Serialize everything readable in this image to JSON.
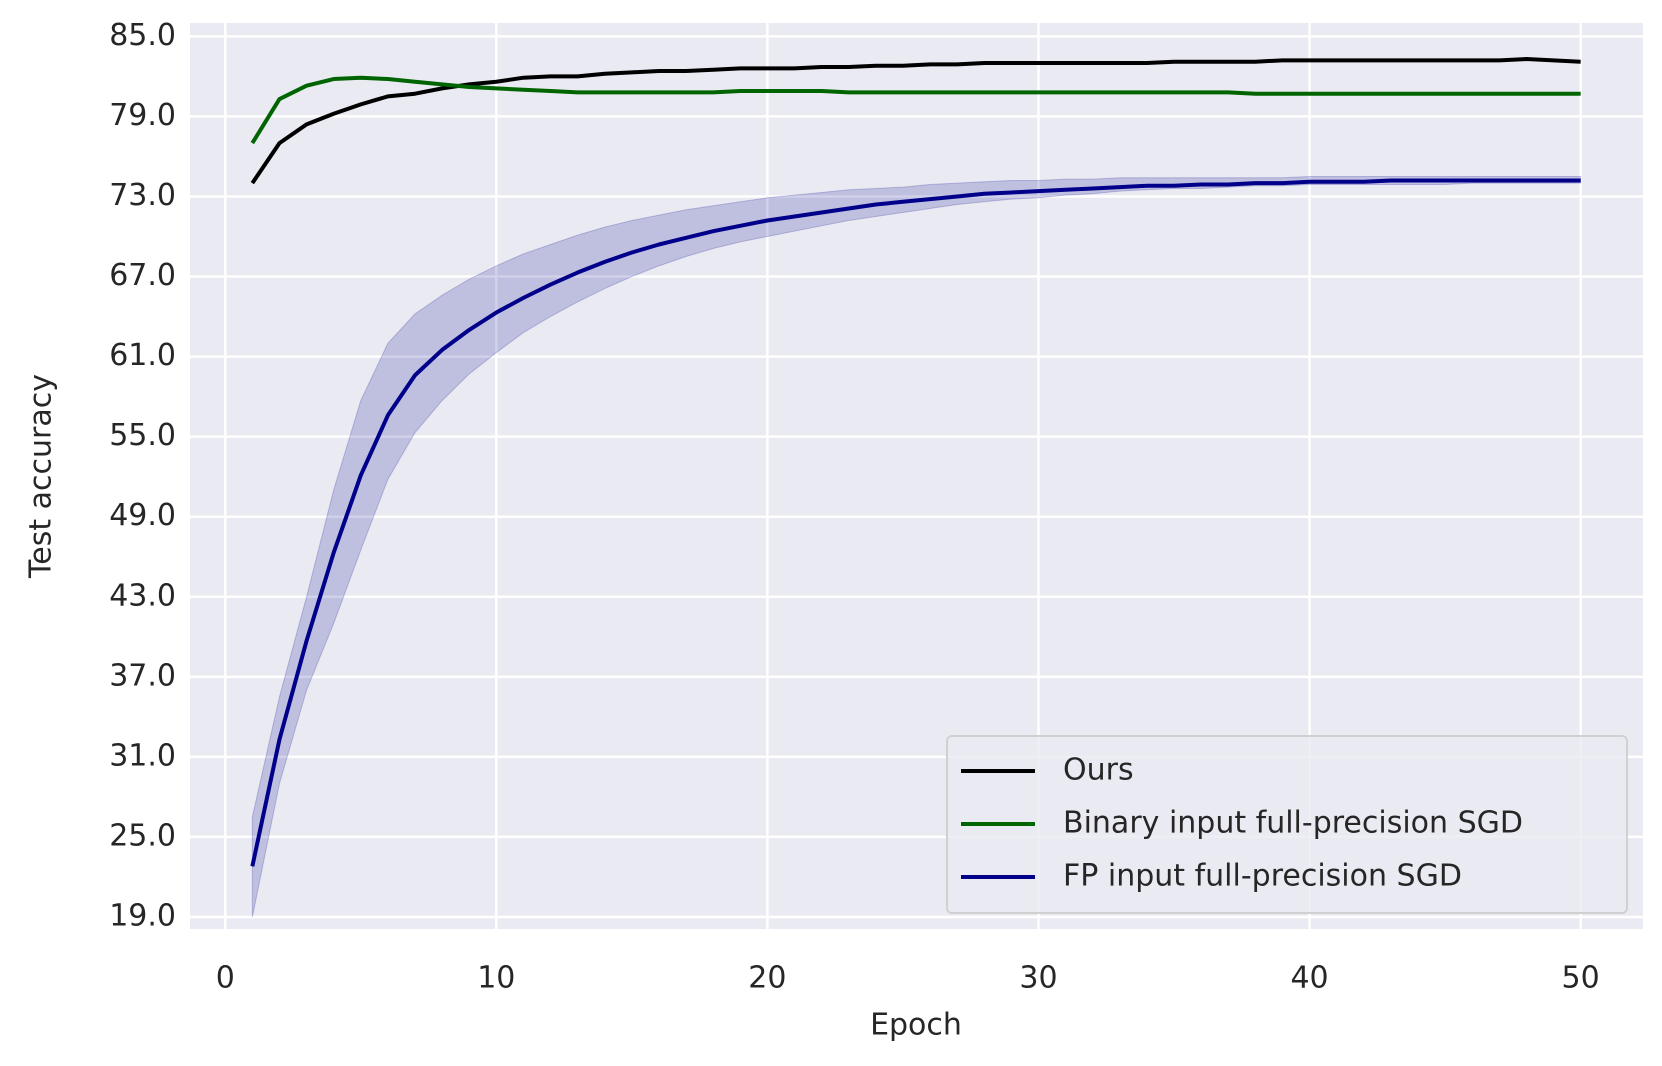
{
  "chart_data": {
    "type": "line",
    "xlabel": "Epoch",
    "ylabel": "Test accuracy",
    "x": [
      1,
      2,
      3,
      4,
      5,
      6,
      7,
      8,
      9,
      10,
      11,
      12,
      13,
      14,
      15,
      16,
      17,
      18,
      19,
      20,
      21,
      22,
      23,
      24,
      25,
      26,
      27,
      28,
      29,
      30,
      31,
      32,
      33,
      34,
      35,
      36,
      37,
      38,
      39,
      40,
      41,
      42,
      43,
      44,
      45,
      46,
      47,
      48,
      49,
      50
    ],
    "xlim": [
      -1.3,
      52.3
    ],
    "xticks": [
      0,
      10,
      20,
      30,
      40,
      50
    ],
    "ylim": [
      18.1,
      86.0
    ],
    "yticks": [
      {
        "value": 19,
        "label": "19.0"
      },
      {
        "value": 25,
        "label": "25.0"
      },
      {
        "value": 31,
        "label": "31.0"
      },
      {
        "value": 37,
        "label": "37.0"
      },
      {
        "value": 43,
        "label": "43.0"
      },
      {
        "value": 49,
        "label": "49.0"
      },
      {
        "value": 55,
        "label": "55.0"
      },
      {
        "value": 61,
        "label": "61.0"
      },
      {
        "value": 67,
        "label": "67.0"
      },
      {
        "value": 73,
        "label": "73.0"
      },
      {
        "value": 79,
        "label": "79.0"
      },
      {
        "value": 85,
        "label": "85.0"
      }
    ],
    "grid": true,
    "legend": "lower right",
    "series": [
      {
        "name": "Ours",
        "color": "#000000",
        "values": [
          74.0,
          77.0,
          78.4,
          79.2,
          79.9,
          80.5,
          80.7,
          81.1,
          81.4,
          81.6,
          81.9,
          82.0,
          82.0,
          82.2,
          82.3,
          82.4,
          82.4,
          82.5,
          82.6,
          82.6,
          82.6,
          82.7,
          82.7,
          82.8,
          82.8,
          82.9,
          82.9,
          83.0,
          83.0,
          83.0,
          83.0,
          83.0,
          83.0,
          83.0,
          83.1,
          83.1,
          83.1,
          83.1,
          83.2,
          83.2,
          83.2,
          83.2,
          83.2,
          83.2,
          83.2,
          83.2,
          83.2,
          83.3,
          83.2,
          83.1
        ]
      },
      {
        "name": "Binary input full-precision SGD",
        "color": "#006400",
        "values": [
          77.0,
          80.3,
          81.3,
          81.8,
          81.9,
          81.8,
          81.6,
          81.4,
          81.2,
          81.1,
          81.0,
          80.9,
          80.8,
          80.8,
          80.8,
          80.8,
          80.8,
          80.8,
          80.9,
          80.9,
          80.9,
          80.9,
          80.8,
          80.8,
          80.8,
          80.8,
          80.8,
          80.8,
          80.8,
          80.8,
          80.8,
          80.8,
          80.8,
          80.8,
          80.8,
          80.8,
          80.8,
          80.7,
          80.7,
          80.7,
          80.7,
          80.7,
          80.7,
          80.7,
          80.7,
          80.7,
          80.7,
          80.7,
          80.7,
          80.7
        ]
      },
      {
        "name": "FP input full-precision SGD",
        "color": "#00008b",
        "values": [
          22.8,
          32.3,
          39.7,
          46.3,
          52.1,
          56.6,
          59.6,
          61.5,
          63.0,
          64.3,
          65.4,
          66.4,
          67.3,
          68.1,
          68.8,
          69.4,
          69.9,
          70.4,
          70.8,
          71.2,
          71.5,
          71.8,
          72.1,
          72.4,
          72.6,
          72.8,
          73.0,
          73.2,
          73.3,
          73.4,
          73.5,
          73.6,
          73.7,
          73.8,
          73.8,
          73.9,
          73.9,
          74.0,
          74.0,
          74.1,
          74.1,
          74.1,
          74.2,
          74.2,
          74.2,
          74.2,
          74.2,
          74.2,
          74.2,
          74.2
        ],
        "lower": [
          19.0,
          29.0,
          36.0,
          41.0,
          46.5,
          51.8,
          55.3,
          57.7,
          59.7,
          61.3,
          62.8,
          64.0,
          65.1,
          66.1,
          67.0,
          67.8,
          68.5,
          69.1,
          69.6,
          70.0,
          70.4,
          70.8,
          71.2,
          71.5,
          71.8,
          72.1,
          72.4,
          72.6,
          72.8,
          72.9,
          73.1,
          73.2,
          73.4,
          73.5,
          73.6,
          73.6,
          73.7,
          73.8,
          73.8,
          73.9,
          73.9,
          73.9,
          73.9,
          73.9,
          73.9,
          74.0,
          74.0,
          74.0,
          74.0,
          74.0
        ],
        "upper": [
          26.5,
          35.5,
          43.0,
          51.0,
          57.7,
          62.0,
          64.2,
          65.6,
          66.8,
          67.8,
          68.7,
          69.4,
          70.1,
          70.7,
          71.2,
          71.6,
          72.0,
          72.3,
          72.6,
          72.9,
          73.1,
          73.3,
          73.5,
          73.6,
          73.7,
          73.9,
          74.0,
          74.1,
          74.2,
          74.2,
          74.3,
          74.3,
          74.4,
          74.4,
          74.4,
          74.4,
          74.4,
          74.4,
          74.4,
          74.5,
          74.5,
          74.5,
          74.5,
          74.5,
          74.5,
          74.5,
          74.5,
          74.5,
          74.5,
          74.5
        ]
      }
    ]
  }
}
